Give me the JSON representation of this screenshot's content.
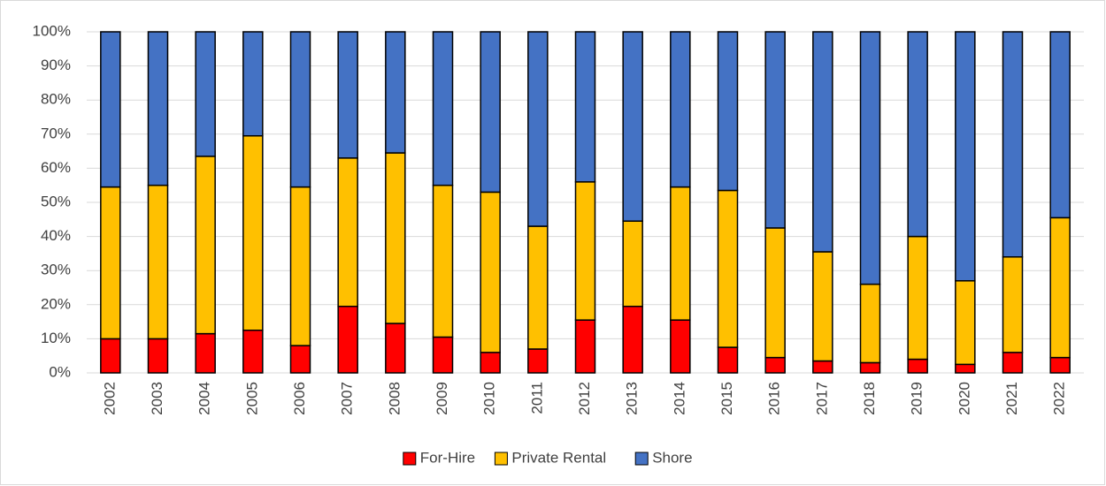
{
  "chart_data": {
    "type": "stacked_bar",
    "categories": [
      "2002",
      "2003",
      "2004",
      "2005",
      "2006",
      "2007",
      "2008",
      "2009",
      "2010",
      "2011",
      "2012",
      "2013",
      "2014",
      "2015",
      "2016",
      "2017",
      "2018",
      "2019",
      "2020",
      "2021",
      "2022"
    ],
    "series": [
      {
        "name": "For-Hire",
        "color": "#ff0000",
        "values": [
          10,
          10,
          11.5,
          12.5,
          8,
          19.5,
          14.5,
          10.5,
          6,
          7,
          15.5,
          19.5,
          15.5,
          7.5,
          4.5,
          3.5,
          3,
          4,
          2.5,
          6,
          4.5
        ]
      },
      {
        "name": "Private Rental",
        "color": "#ffc000",
        "values": [
          44.5,
          45,
          52,
          57,
          46.5,
          43.5,
          50,
          44.5,
          47,
          36,
          40.5,
          25,
          39,
          46,
          38,
          32,
          23,
          36,
          24.5,
          28,
          41
        ]
      },
      {
        "name": "Shore",
        "color": "#4472c4",
        "values": [
          45.5,
          45,
          36.5,
          30.5,
          45.5,
          37,
          35.5,
          45,
          47,
          57,
          44,
          55.5,
          45.5,
          46.5,
          57.5,
          64.5,
          74,
          60,
          73,
          66,
          54.5
        ]
      }
    ],
    "ylim": [
      0,
      100
    ],
    "yticks": [
      {
        "value": 0,
        "label": "0%"
      },
      {
        "value": 10,
        "label": "10%"
      },
      {
        "value": 20,
        "label": "20%"
      },
      {
        "value": 30,
        "label": "30%"
      },
      {
        "value": 40,
        "label": "40%"
      },
      {
        "value": 50,
        "label": "50%"
      },
      {
        "value": 60,
        "label": "60%"
      },
      {
        "value": 70,
        "label": "70%"
      },
      {
        "value": 80,
        "label": "80%"
      },
      {
        "value": 90,
        "label": "90%"
      },
      {
        "value": 100,
        "label": "100%"
      }
    ],
    "grid": true,
    "legend": "bottom"
  }
}
